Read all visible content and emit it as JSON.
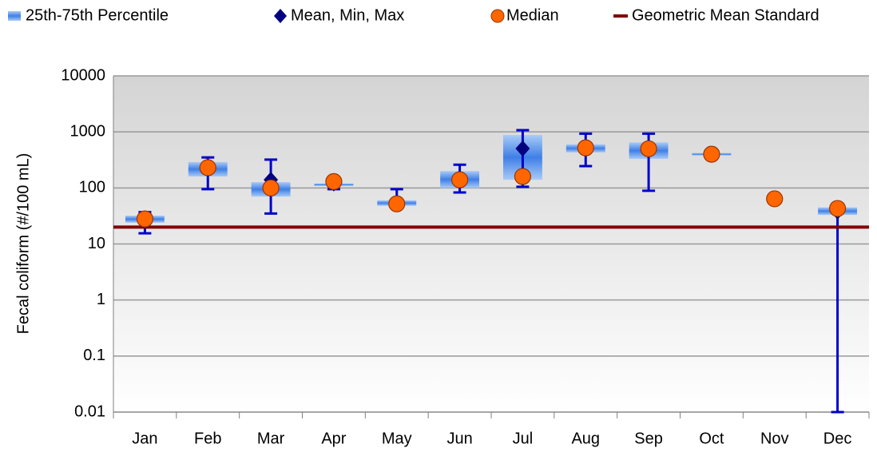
{
  "chart_data": {
    "type": "box",
    "y_label": "Fecal coliform (#/100 mL)",
    "yscale": "log",
    "ylim": [
      0.01,
      10000
    ],
    "yticks": [
      0.01,
      0.1,
      1,
      10,
      100,
      1000,
      10000
    ],
    "grid": true,
    "legend": "top",
    "categories": [
      "Jan",
      "Feb",
      "Mar",
      "Apr",
      "May",
      "Jun",
      "Jul",
      "Aug",
      "Sep",
      "Oct",
      "Nov",
      "Dec"
    ],
    "boxes": {
      "name": "25th-75th Percentile",
      "color": "#3f7fe6",
      "q1": [
        24,
        160,
        70,
        110,
        48,
        100,
        140,
        430,
        330,
        380,
        null,
        33
      ],
      "q3": [
        32,
        290,
        127,
        120,
        60,
        200,
        880,
        600,
        650,
        420,
        null,
        45
      ]
    },
    "mean_min_max": {
      "name": "Mean, Min, Max",
      "color": "#000080",
      "whisker_color": "#0000cc",
      "mean": [
        27,
        220,
        140,
        120,
        55,
        150,
        505,
        530,
        500,
        400,
        null,
        38
      ],
      "min": [
        15.5,
        95,
        35,
        95,
        48,
        83,
        105,
        245,
        89,
        400,
        null,
        0.01
      ],
      "max": [
        37,
        350,
        320,
        125,
        95,
        260,
        1075,
        930,
        930,
        400,
        null,
        45
      ]
    },
    "median": {
      "name": "Median",
      "color": "#ff6600",
      "values": [
        28,
        230,
        100,
        130,
        52,
        140,
        160,
        520,
        500,
        400,
        64,
        43
      ]
    },
    "standard": {
      "name": "Geometric Mean Standard",
      "color": "#800000",
      "value": 20
    }
  }
}
